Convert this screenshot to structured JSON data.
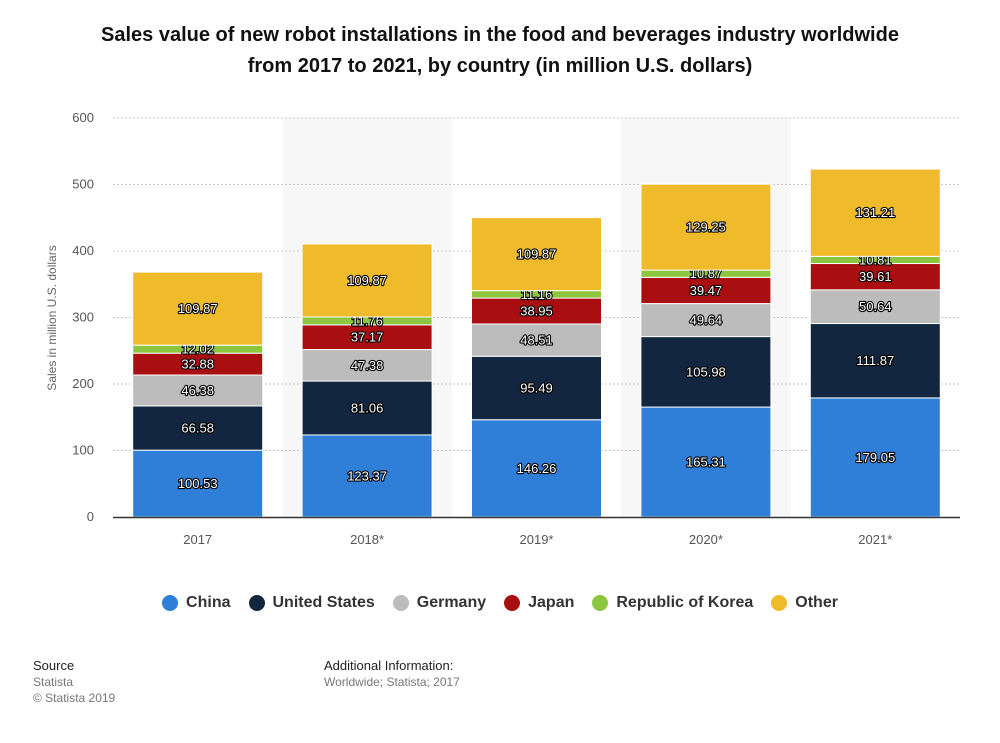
{
  "title_line1": "Sales value of new robot installations in the food and beverages industry worldwide",
  "title_line2": "from 2017 to 2021, by country (in million U.S. dollars)",
  "chart_data": {
    "type": "bar",
    "stacked": true,
    "categories": [
      "2017",
      "2018*",
      "2019*",
      "2020*",
      "2021*"
    ],
    "series": [
      {
        "name": "China",
        "color": "#2f7ed8",
        "values": [
          100.53,
          123.37,
          146.26,
          165.31,
          179.05
        ]
      },
      {
        "name": "United States",
        "color": "#13263f",
        "values": [
          66.58,
          81.06,
          95.49,
          105.98,
          111.87
        ]
      },
      {
        "name": "Germany",
        "color": "#bcbcbc",
        "values": [
          46.38,
          47.38,
          48.51,
          49.64,
          50.64
        ]
      },
      {
        "name": "Japan",
        "color": "#a90f11",
        "values": [
          32.88,
          37.17,
          38.95,
          39.47,
          39.61
        ]
      },
      {
        "name": "Republic of Korea",
        "color": "#8cc63e",
        "values": [
          12.02,
          11.76,
          11.16,
          10.87,
          10.81
        ]
      },
      {
        "name": "Other",
        "color": "#f0bb2b",
        "values": [
          109.87,
          109.87,
          109.87,
          129.25,
          131.21
        ]
      }
    ],
    "ylabel": "Sales in million U.S. dollars",
    "xlabel": "",
    "ylim": [
      0,
      600
    ],
    "yticks": [
      0,
      100,
      200,
      300,
      400,
      500,
      600
    ],
    "grid": true,
    "legend_position": "bottom"
  },
  "footer": {
    "source_heading": "Source",
    "source_line1": "Statista",
    "source_line2": "© Statista 2019",
    "info_heading": "Additional Information:",
    "info_line1": "Worldwide; Statista; 2017"
  }
}
